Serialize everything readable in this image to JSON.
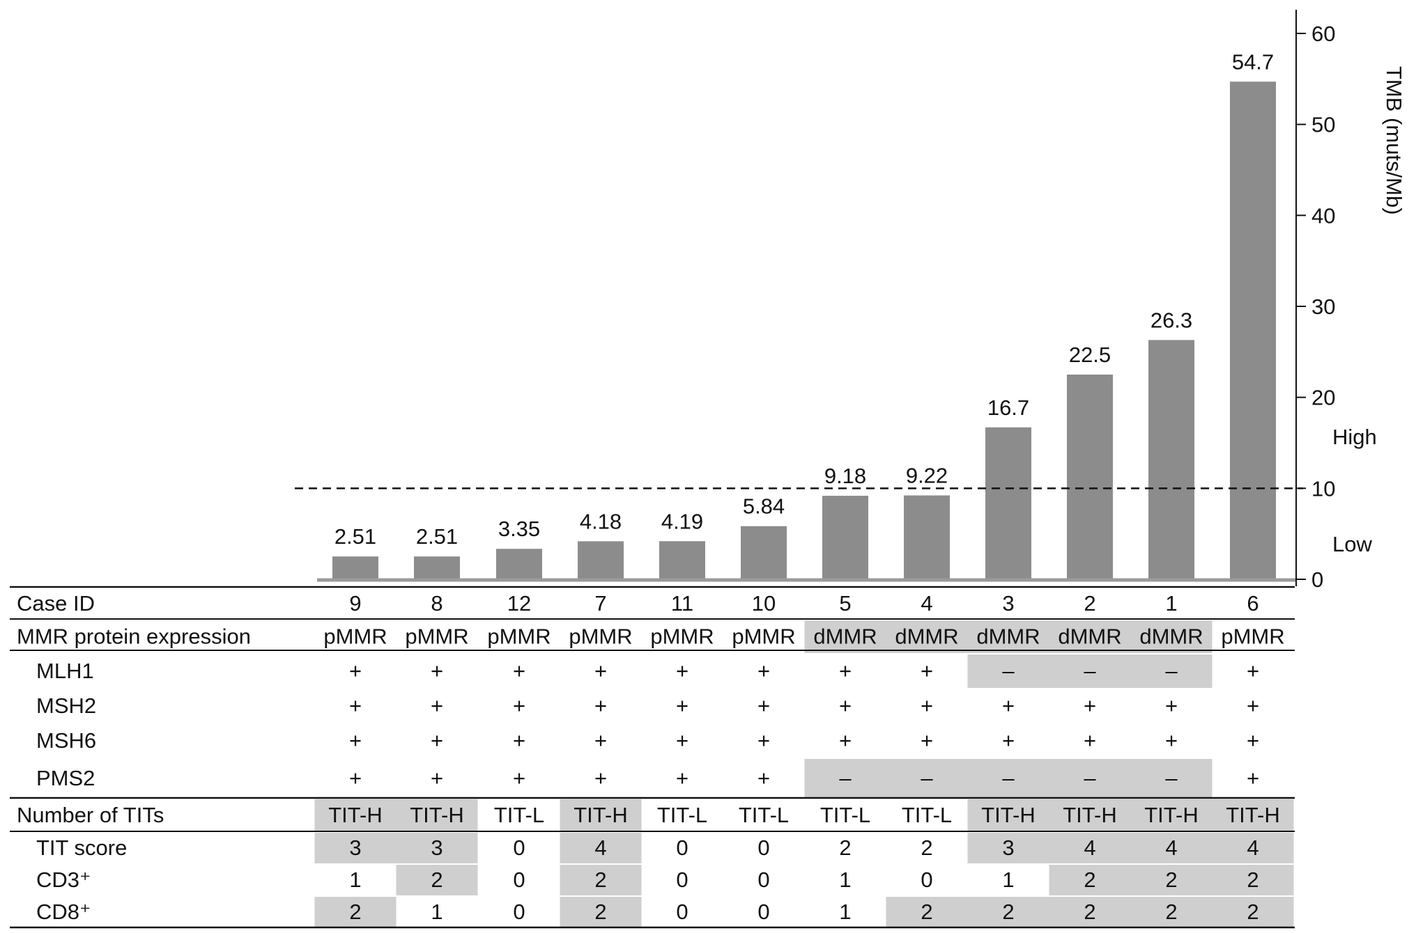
{
  "chart_data": {
    "type": "bar",
    "ylabel": "TMB (muts/Mb)",
    "ylim": [
      0,
      60
    ],
    "yticks": [
      0,
      10,
      20,
      30,
      40,
      50,
      60
    ],
    "threshold": 10,
    "threshold_labels": {
      "high": "High",
      "low": "Low"
    },
    "bar_color": "#8c8c8c",
    "highlight_color": "#cfcfcf",
    "cases": [
      "9",
      "8",
      "12",
      "7",
      "11",
      "10",
      "5",
      "4",
      "3",
      "2",
      "1",
      "6"
    ],
    "values": [
      2.51,
      2.51,
      3.35,
      4.18,
      4.19,
      5.84,
      9.18,
      9.22,
      16.7,
      22.5,
      26.3,
      54.7
    ],
    "value_labels": [
      "2.51",
      "2.51",
      "3.35",
      "4.18",
      "4.19",
      "5.84",
      "9.18",
      "9.22",
      "16.7",
      "22.5",
      "26.3",
      "54.7"
    ]
  },
  "table": {
    "rows": [
      {
        "label": "Case ID",
        "indent": false,
        "cells": [
          "9",
          "8",
          "12",
          "7",
          "11",
          "10",
          "5",
          "4",
          "3",
          "2",
          "1",
          "6"
        ],
        "shade": [
          0,
          0,
          0,
          0,
          0,
          0,
          0,
          0,
          0,
          0,
          0,
          0
        ]
      },
      {
        "label": "MMR protein expression",
        "indent": false,
        "cells": [
          "pMMR",
          "pMMR",
          "pMMR",
          "pMMR",
          "pMMR",
          "pMMR",
          "dMMR",
          "dMMR",
          "dMMR",
          "dMMR",
          "dMMR",
          "pMMR"
        ],
        "shade": [
          0,
          0,
          0,
          0,
          0,
          0,
          1,
          1,
          1,
          1,
          1,
          0
        ]
      },
      {
        "label": "MLH1",
        "indent": true,
        "cells": [
          "+",
          "+",
          "+",
          "+",
          "+",
          "+",
          "+",
          "+",
          "–",
          "–",
          "–",
          "+"
        ],
        "shade": [
          0,
          0,
          0,
          0,
          0,
          0,
          0,
          0,
          1,
          1,
          1,
          0
        ]
      },
      {
        "label": "MSH2",
        "indent": true,
        "cells": [
          "+",
          "+",
          "+",
          "+",
          "+",
          "+",
          "+",
          "+",
          "+",
          "+",
          "+",
          "+"
        ],
        "shade": [
          0,
          0,
          0,
          0,
          0,
          0,
          0,
          0,
          0,
          0,
          0,
          0
        ]
      },
      {
        "label": "MSH6",
        "indent": true,
        "cells": [
          "+",
          "+",
          "+",
          "+",
          "+",
          "+",
          "+",
          "+",
          "+",
          "+",
          "+",
          "+"
        ],
        "shade": [
          0,
          0,
          0,
          0,
          0,
          0,
          0,
          0,
          0,
          0,
          0,
          0
        ]
      },
      {
        "label": "PMS2",
        "indent": true,
        "cells": [
          "+",
          "+",
          "+",
          "+",
          "+",
          "+",
          "–",
          "–",
          "–",
          "–",
          "–",
          "+"
        ],
        "shade": [
          0,
          0,
          0,
          0,
          0,
          0,
          1,
          1,
          1,
          1,
          1,
          0
        ]
      },
      {
        "label": "Number of TITs",
        "indent": false,
        "cells": [
          "TIT-H",
          "TIT-H",
          "TIT-L",
          "TIT-H",
          "TIT-L",
          "TIT-L",
          "TIT-L",
          "TIT-L",
          "TIT-H",
          "TIT-H",
          "TIT-H",
          "TIT-H"
        ],
        "shade": [
          1,
          1,
          0,
          1,
          0,
          0,
          0,
          0,
          1,
          1,
          1,
          1
        ]
      },
      {
        "label": "TIT score",
        "indent": true,
        "cells": [
          "3",
          "3",
          "0",
          "4",
          "0",
          "0",
          "2",
          "2",
          "3",
          "4",
          "4",
          "4"
        ],
        "shade": [
          1,
          1,
          0,
          1,
          0,
          0,
          0,
          0,
          1,
          1,
          1,
          1
        ]
      },
      {
        "label": "CD3⁺",
        "indent": true,
        "cells": [
          "1",
          "2",
          "0",
          "2",
          "0",
          "0",
          "1",
          "0",
          "1",
          "2",
          "2",
          "2"
        ],
        "shade": [
          0,
          1,
          0,
          1,
          0,
          0,
          0,
          0,
          0,
          1,
          1,
          1
        ]
      },
      {
        "label": "CD8⁺",
        "indent": true,
        "cells": [
          "2",
          "1",
          "0",
          "2",
          "0",
          "0",
          "1",
          "2",
          "2",
          "2",
          "2",
          "2"
        ],
        "shade": [
          1,
          0,
          0,
          1,
          0,
          0,
          0,
          1,
          1,
          1,
          1,
          1
        ]
      }
    ]
  }
}
